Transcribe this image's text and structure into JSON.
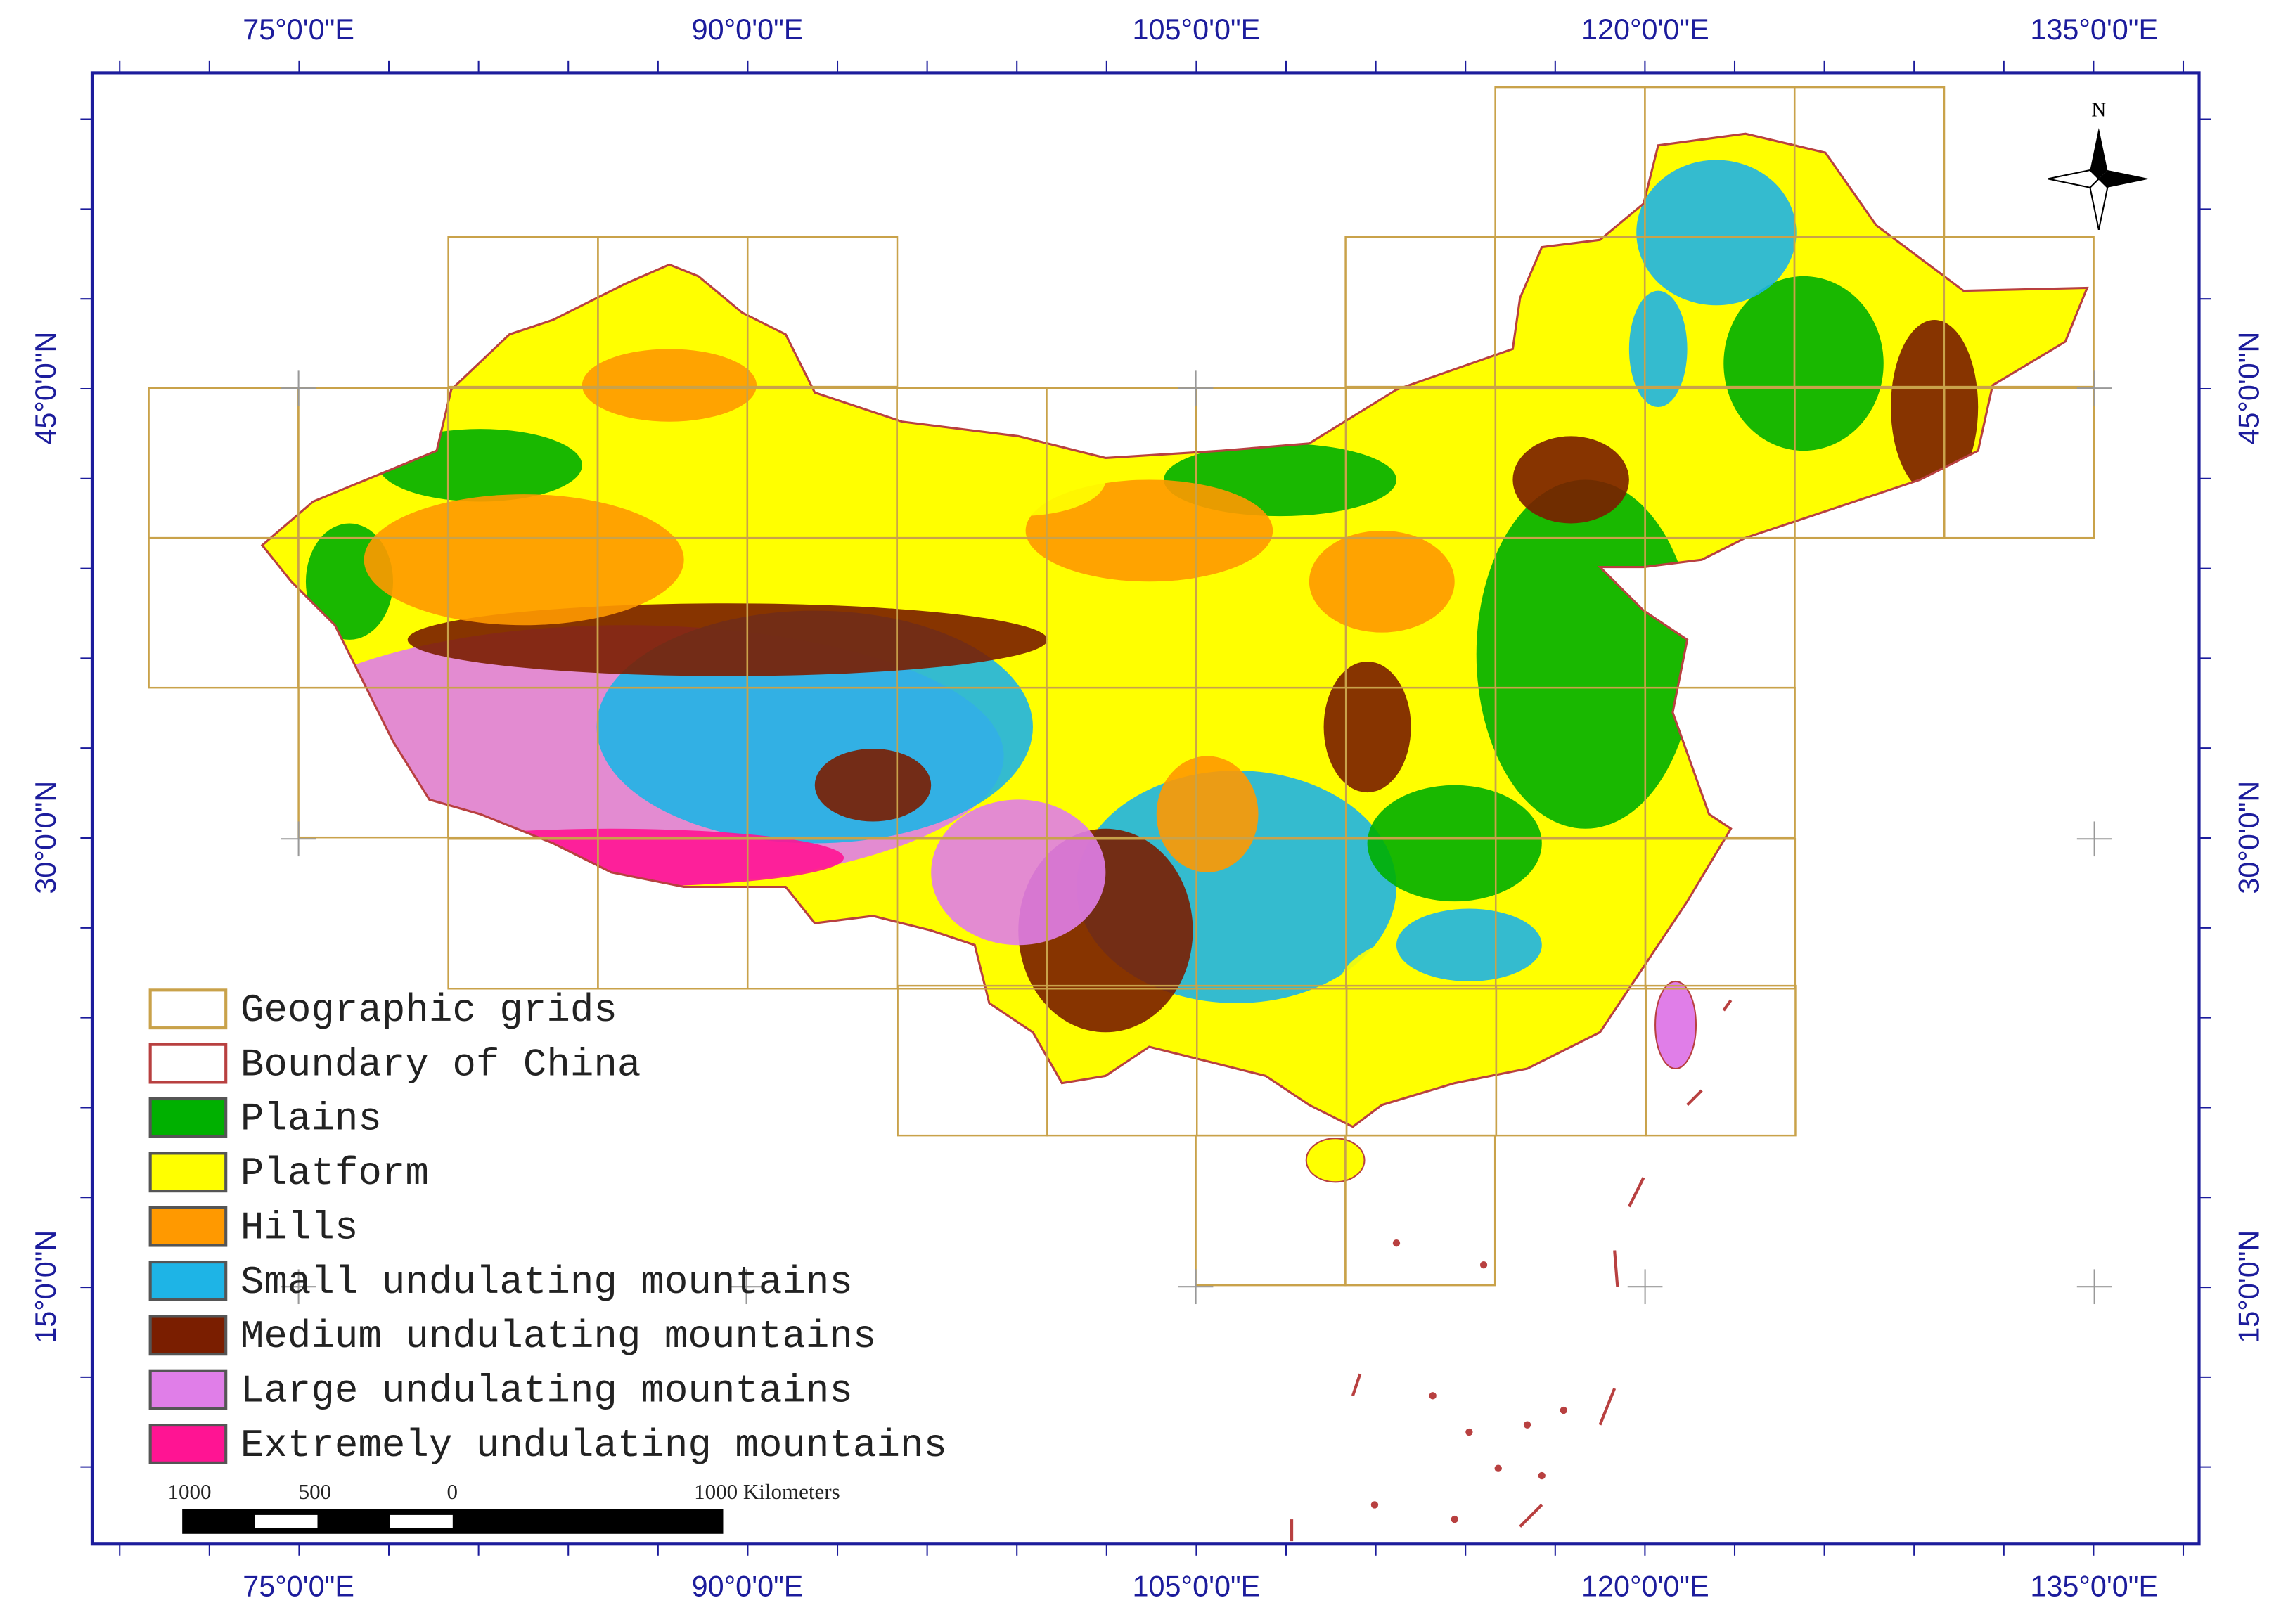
{
  "map": {
    "lon_labels": [
      "75°0'0\"E",
      "90°0'0\"E",
      "105°0'0\"E",
      "120°0'0\"E",
      "135°0'0\"E"
    ],
    "lat_labels": [
      "45°0'0\"N",
      "30°0'0\"N",
      "15°0'0\"N"
    ],
    "north": "N",
    "legend": [
      {
        "label": "Geographic grids",
        "color": "#ffffff",
        "stroke": "#c9a24a"
      },
      {
        "label": "Boundary of China",
        "color": "#ffffff",
        "stroke": "#b84040"
      },
      {
        "label": "Plains",
        "color": "#00b000",
        "stroke": "#555555"
      },
      {
        "label": "Platform",
        "color": "#ffff00",
        "stroke": "#555555"
      },
      {
        "label": "Hills",
        "color": "#ff9900",
        "stroke": "#555555"
      },
      {
        "label": "Small undulating mountains",
        "color": "#1eb4e6",
        "stroke": "#555555"
      },
      {
        "label": "Medium undulating mountains",
        "color": "#7a1e00",
        "stroke": "#555555"
      },
      {
        "label": "Large undulating mountains",
        "color": "#e07ee8",
        "stroke": "#555555"
      },
      {
        "label": "Extremely undulating mountains",
        "color": "#ff1493",
        "stroke": "#555555"
      }
    ],
    "scale_labels": [
      "1000",
      "500",
      "0",
      "1000 Kilometers"
    ]
  }
}
